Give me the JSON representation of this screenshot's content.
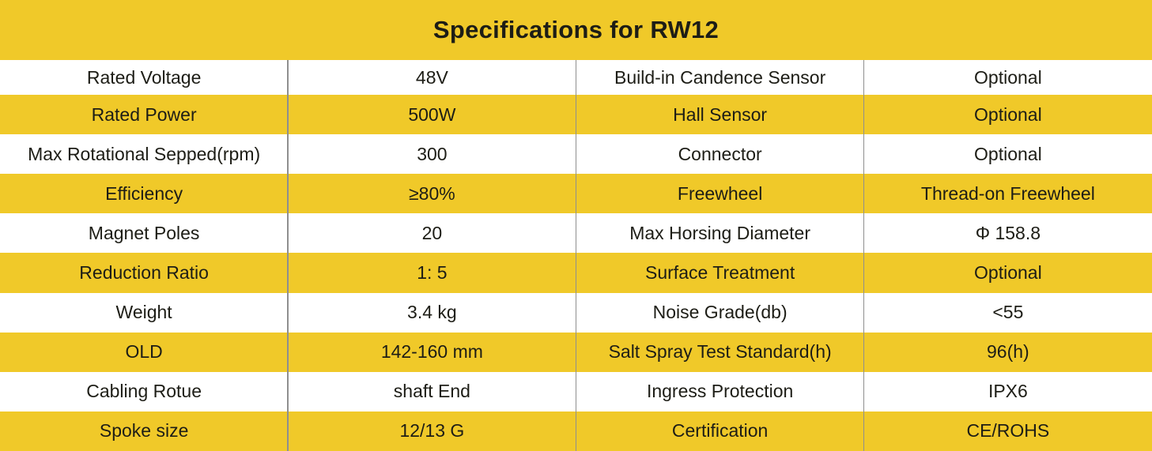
{
  "title": "Specifications for RW12",
  "colors": {
    "accent_yellow": "#F0C929",
    "row_white": "#FFFFFF",
    "text_dark": "#1D1D16",
    "divider_gray": "#8F8F8F"
  },
  "table": {
    "rows": [
      {
        "left_label": "Rated Voltage",
        "left_value": "48V",
        "right_label": "Build-in Candence Sensor",
        "right_value": "Optional"
      },
      {
        "left_label": "Rated Power",
        "left_value": "500W",
        "right_label": "Hall Sensor",
        "right_value": "Optional"
      },
      {
        "left_label": "Max Rotational Sepped(rpm)",
        "left_value": "300",
        "right_label": "Connector",
        "right_value": "Optional"
      },
      {
        "left_label": "Efficiency",
        "left_value": "≥80%",
        "right_label": "Freewheel",
        "right_value": "Thread-on Freewheel"
      },
      {
        "left_label": "Magnet Poles",
        "left_value": "20",
        "right_label": "Max Horsing Diameter",
        "right_value": "Φ 158.8"
      },
      {
        "left_label": "Reduction Ratio",
        "left_value": "1: 5",
        "right_label": "Surface Treatment",
        "right_value": "Optional"
      },
      {
        "left_label": "Weight",
        "left_value": "3.4 kg",
        "right_label": "Noise Grade(db)",
        "right_value": "<55"
      },
      {
        "left_label": "OLD",
        "left_value": "142-160 mm",
        "right_label": "Salt Spray Test Standard(h)",
        "right_value": "96(h)"
      },
      {
        "left_label": "Cabling Rotue",
        "left_value": "shaft End",
        "right_label": "Ingress Protection",
        "right_value": "IPX6"
      },
      {
        "left_label": "Spoke size",
        "left_value": "12/13 G",
        "right_label": "Certification",
        "right_value": "CE/ROHS"
      }
    ]
  }
}
